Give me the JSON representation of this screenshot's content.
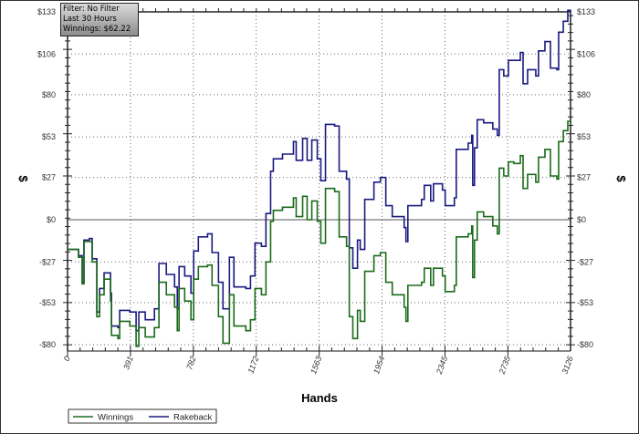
{
  "filter_box": {
    "line1": "Filter: No Filter",
    "line2": "Last  30 Hours",
    "line3": "Winnings: $62.22"
  },
  "chart_data": {
    "type": "line",
    "title": "",
    "xlabel": "Hands",
    "ylabel": "$",
    "ylabel_right": "$",
    "xlim": [
      0,
      3126
    ],
    "ylim": [
      -84,
      133
    ],
    "x_ticks": [
      0,
      391,
      782,
      1172,
      1563,
      1954,
      2345,
      2735,
      3126
    ],
    "x_tick_labels": [
      "0",
      "391",
      "782",
      "1172",
      "1563",
      "1954",
      "2345",
      "2735",
      "3126"
    ],
    "y_ticks": [
      -80,
      -53,
      -27,
      0,
      27,
      53,
      80,
      106,
      133
    ],
    "y_tick_labels": [
      "-$80",
      "-$53",
      "-$27",
      "$0",
      "$27",
      "$53",
      "$80",
      "$106",
      "$133"
    ],
    "grid": true,
    "legend_position": "bottom-left",
    "colors": {
      "Winnings": "#1a6b1a",
      "Rakeback": "#1a1a80"
    },
    "x": [
      0,
      68,
      91,
      102,
      136,
      153,
      182,
      199,
      227,
      267,
      273,
      313,
      324,
      387,
      426,
      443,
      483,
      540,
      568,
      614,
      665,
      682,
      693,
      728,
      767,
      784,
      813,
      870,
      898,
      938,
      966,
      1006,
      1034,
      1108,
      1137,
      1165,
      1205,
      1233,
      1262,
      1279,
      1336,
      1404,
      1421,
      1461,
      1489,
      1518,
      1552,
      1574,
      1603,
      1660,
      1688,
      1734,
      1751,
      1773,
      1802,
      1819,
      1847,
      1904,
      1944,
      1978,
      2018,
      2092,
      2103,
      2115,
      2200,
      2217,
      2257,
      2274,
      2330,
      2347,
      2404,
      2416,
      2490,
      2512,
      2518,
      2529,
      2546,
      2586,
      2643,
      2671,
      2683,
      2711,
      2740,
      2774,
      2814,
      2831,
      2859,
      2910,
      2927,
      2967,
      3001,
      3041,
      3052,
      3081,
      3109,
      3126
    ],
    "series": [
      {
        "name": "Winnings",
        "values": [
          -19,
          -24,
          -41,
          -14,
          -14,
          -27,
          -62,
          -48,
          -38,
          -52,
          -74,
          -76,
          -65,
          -68,
          -81,
          -69,
          -75,
          -69,
          -40,
          -48,
          -56,
          -71,
          -44,
          -52,
          -64,
          -38,
          -30,
          -29,
          -42,
          -62,
          -79,
          -48,
          -68,
          -71,
          -64,
          -44,
          -48,
          -27,
          -1,
          6,
          8,
          14,
          2,
          15,
          0,
          12,
          -1,
          -15,
          20,
          18,
          -11,
          -17,
          -62,
          -76,
          -58,
          -65,
          -33,
          -23,
          -21,
          -40,
          -48,
          -56,
          -65,
          -42,
          -40,
          -31,
          -42,
          -31,
          -36,
          -46,
          -42,
          -11,
          -9,
          -4,
          -37,
          -13,
          5,
          2,
          -4,
          -9,
          33,
          28,
          37,
          36,
          41,
          20,
          29,
          24,
          40,
          45,
          28,
          26,
          50,
          57,
          63,
          62.22
        ]
      },
      {
        "name": "Rakeback",
        "values": [
          -19,
          -23,
          -40,
          -13,
          -12,
          -25,
          -59,
          -44,
          -34,
          -47,
          -68,
          -69,
          -58,
          -59,
          -71,
          -59,
          -64,
          -57,
          -28,
          -35,
          -43,
          -57,
          -30,
          -36,
          -47,
          -20,
          -11,
          -9,
          -21,
          -40,
          -57,
          -24,
          -43,
          -44,
          -36,
          -15,
          -17,
          4,
          31,
          39,
          42,
          50,
          38,
          52,
          38,
          51,
          39,
          25,
          61,
          60,
          31,
          26,
          -18,
          -31,
          -13,
          -19,
          13,
          24,
          27,
          9,
          2,
          -5,
          -14,
          9,
          13,
          22,
          12,
          23,
          19,
          9,
          14,
          45,
          49,
          54,
          22,
          46,
          64,
          62,
          58,
          54,
          96,
          92,
          102,
          102,
          107,
          87,
          96,
          92,
          108,
          114,
          97,
          96,
          120,
          127,
          134,
          133
        ]
      }
    ]
  }
}
